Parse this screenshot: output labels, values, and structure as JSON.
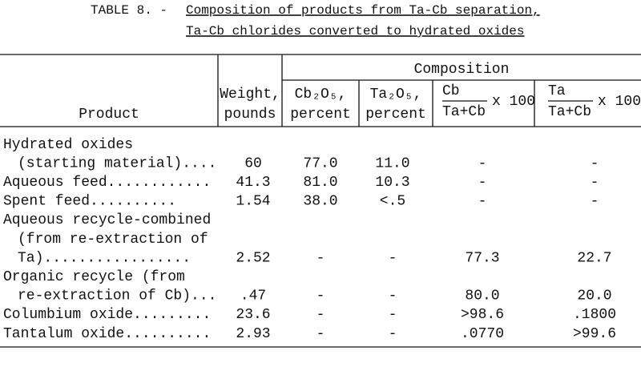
{
  "title": {
    "label": "TABLE 8. -",
    "lines": [
      "Composition of products from Ta-Cb separation,",
      "Ta-Cb chlorides converted to hydrated oxides"
    ]
  },
  "table": {
    "headers": {
      "product": "Product",
      "weight": [
        "Weight,",
        "pounds"
      ],
      "composition": "Composition",
      "cb2o5": [
        "Cb₂O₅,",
        "percent"
      ],
      "ta2o5": [
        "Ta₂O₅,",
        "percent"
      ],
      "cb_ratio": {
        "numerator": "Cb",
        "denominator": "Ta+Cb",
        "factor": "x 100"
      },
      "ta_ratio": {
        "numerator": "Ta",
        "denominator": "Ta+Cb",
        "factor": "x 100"
      }
    },
    "rows": [
      {
        "product": [
          "Hydrated oxides",
          "(starting material)...."
        ],
        "cells": [
          "60",
          "77.0",
          "11.0",
          "-",
          "-"
        ]
      },
      {
        "product": [
          "Aqueous feed............"
        ],
        "cells": [
          "41.3",
          "81.0",
          "10.3",
          "-",
          "-"
        ]
      },
      {
        "product": [
          "Spent feed.........."
        ],
        "cells": [
          "1.54",
          "38.0",
          "<.5",
          "-",
          "-"
        ]
      },
      {
        "product": [
          "Aqueous recycle-combined",
          "(from re-extraction of",
          "Ta)................."
        ],
        "cells": [
          "2.52",
          "-",
          "-",
          "77.3",
          "22.7"
        ]
      },
      {
        "product": [
          "Organic recycle (from",
          "re-extraction of Cb)..."
        ],
        "cells": [
          ".47",
          "-",
          "-",
          "80.0",
          "20.0"
        ]
      },
      {
        "product": [
          "Columbium oxide........."
        ],
        "cells": [
          "23.6",
          "-",
          "-",
          ">98.6",
          ".1800"
        ]
      },
      {
        "product": [
          "Tantalum oxide.........."
        ],
        "cells": [
          "2.93",
          "-",
          "-",
          ".0770",
          ">99.6"
        ]
      }
    ]
  }
}
